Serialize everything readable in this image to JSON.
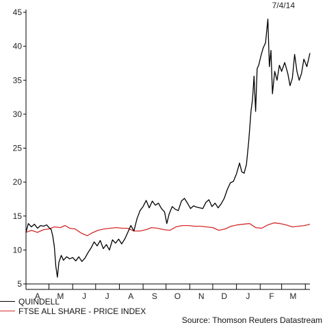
{
  "date_stamp": "7/4/14",
  "source": "Source: Thomson Reuters Datastream",
  "colors": {
    "series1": "#000000",
    "series2": "#d42a2a",
    "axis": "#000000"
  },
  "chart_data": {
    "type": "line",
    "title": "",
    "xlabel": "",
    "ylabel": "",
    "ylim": [
      5,
      45
    ],
    "yticks": [
      5,
      10,
      15,
      20,
      25,
      30,
      35,
      40,
      45
    ],
    "xlim": [
      "2013-04-01",
      "2014-04-07"
    ],
    "xticks": [
      {
        "label": "A",
        "date": "2013-04-16"
      },
      {
        "label": "M",
        "date": "2013-05-16"
      },
      {
        "label": "J",
        "date": "2013-06-16"
      },
      {
        "label": "J",
        "date": "2013-07-16"
      },
      {
        "label": "A",
        "date": "2013-08-16"
      },
      {
        "label": "S",
        "date": "2013-09-16"
      },
      {
        "label": "O",
        "date": "2013-10-16"
      },
      {
        "label": "N",
        "date": "2013-11-16"
      },
      {
        "label": "D",
        "date": "2013-12-16"
      },
      {
        "label": "J",
        "date": "2014-01-16"
      },
      {
        "label": "F",
        "date": "2014-02-16"
      },
      {
        "label": "M",
        "date": "2014-03-16"
      }
    ],
    "grid": false,
    "legend_position": "bottom-left",
    "series": [
      {
        "name": "QUINDELL",
        "points": [
          [
            "2013-04-01",
            12.6
          ],
          [
            "2013-04-04",
            13.9
          ],
          [
            "2013-04-08",
            13.4
          ],
          [
            "2013-04-12",
            13.8
          ],
          [
            "2013-04-16",
            13.2
          ],
          [
            "2013-04-20",
            13.6
          ],
          [
            "2013-04-24",
            13.5
          ],
          [
            "2013-04-28",
            13.7
          ],
          [
            "2013-05-01",
            13.3
          ],
          [
            "2013-05-04",
            13.0
          ],
          [
            "2013-05-06",
            12.0
          ],
          [
            "2013-05-08",
            10.5
          ],
          [
            "2013-05-10",
            7.6
          ],
          [
            "2013-05-12",
            6.0
          ],
          [
            "2013-05-14",
            8.2
          ],
          [
            "2013-05-17",
            9.2
          ],
          [
            "2013-05-20",
            8.5
          ],
          [
            "2013-05-24",
            9.0
          ],
          [
            "2013-05-28",
            8.7
          ],
          [
            "2013-06-01",
            8.9
          ],
          [
            "2013-06-05",
            8.4
          ],
          [
            "2013-06-09",
            9.0
          ],
          [
            "2013-06-13",
            8.3
          ],
          [
            "2013-06-17",
            8.8
          ],
          [
            "2013-06-21",
            9.6
          ],
          [
            "2013-06-25",
            10.3
          ],
          [
            "2013-06-29",
            11.2
          ],
          [
            "2013-07-03",
            10.6
          ],
          [
            "2013-07-07",
            11.4
          ],
          [
            "2013-07-11",
            10.2
          ],
          [
            "2013-07-15",
            10.8
          ],
          [
            "2013-07-19",
            10.0
          ],
          [
            "2013-07-23",
            11.5
          ],
          [
            "2013-07-27",
            11.0
          ],
          [
            "2013-07-31",
            11.6
          ],
          [
            "2013-08-04",
            10.9
          ],
          [
            "2013-08-08",
            11.6
          ],
          [
            "2013-08-12",
            12.6
          ],
          [
            "2013-08-16",
            13.6
          ],
          [
            "2013-08-20",
            12.8
          ],
          [
            "2013-08-24",
            14.6
          ],
          [
            "2013-08-28",
            15.8
          ],
          [
            "2013-09-01",
            16.4
          ],
          [
            "2013-09-05",
            17.3
          ],
          [
            "2013-09-09",
            16.2
          ],
          [
            "2013-09-13",
            17.2
          ],
          [
            "2013-09-17",
            16.6
          ],
          [
            "2013-09-21",
            16.9
          ],
          [
            "2013-09-25",
            16.1
          ],
          [
            "2013-09-29",
            15.6
          ],
          [
            "2013-10-02",
            13.9
          ],
          [
            "2013-10-05",
            15.3
          ],
          [
            "2013-10-09",
            16.4
          ],
          [
            "2013-10-13",
            16.0
          ],
          [
            "2013-10-17",
            15.8
          ],
          [
            "2013-10-21",
            17.2
          ],
          [
            "2013-10-25",
            17.6
          ],
          [
            "2013-10-29",
            16.9
          ],
          [
            "2013-11-02",
            16.1
          ],
          [
            "2013-11-06",
            16.5
          ],
          [
            "2013-11-10",
            16.3
          ],
          [
            "2013-11-14",
            16.2
          ],
          [
            "2013-11-18",
            16.1
          ],
          [
            "2013-11-22",
            17.0
          ],
          [
            "2013-11-26",
            17.4
          ],
          [
            "2013-11-30",
            16.4
          ],
          [
            "2013-12-04",
            16.9
          ],
          [
            "2013-12-08",
            16.2
          ],
          [
            "2013-12-12",
            16.8
          ],
          [
            "2013-12-16",
            17.6
          ],
          [
            "2013-12-20",
            18.9
          ],
          [
            "2013-12-24",
            19.9
          ],
          [
            "2013-12-28",
            20.1
          ],
          [
            "2014-01-01",
            21.2
          ],
          [
            "2014-01-05",
            22.8
          ],
          [
            "2014-01-08",
            21.5
          ],
          [
            "2014-01-11",
            21.3
          ],
          [
            "2014-01-14",
            22.6
          ],
          [
            "2014-01-17",
            26.0
          ],
          [
            "2014-01-20",
            30.5
          ],
          [
            "2014-01-22",
            32.2
          ],
          [
            "2014-01-24",
            35.6
          ],
          [
            "2014-01-26",
            30.4
          ],
          [
            "2014-01-28",
            36.7
          ],
          [
            "2014-01-30",
            37.2
          ],
          [
            "2014-02-02",
            38.6
          ],
          [
            "2014-02-05",
            39.8
          ],
          [
            "2014-02-08",
            40.5
          ],
          [
            "2014-02-11",
            44.0
          ],
          [
            "2014-02-13",
            37.0
          ],
          [
            "2014-02-15",
            39.4
          ],
          [
            "2014-02-17",
            33.0
          ],
          [
            "2014-02-20",
            36.3
          ],
          [
            "2014-02-23",
            35.0
          ],
          [
            "2014-02-26",
            37.2
          ],
          [
            "2014-03-01",
            36.3
          ],
          [
            "2014-03-05",
            37.6
          ],
          [
            "2014-03-09",
            36.0
          ],
          [
            "2014-03-12",
            34.2
          ],
          [
            "2014-03-15",
            35.3
          ],
          [
            "2014-03-18",
            38.8
          ],
          [
            "2014-03-21",
            36.3
          ],
          [
            "2014-03-24",
            35.0
          ],
          [
            "2014-03-27",
            36.0
          ],
          [
            "2014-03-30",
            38.1
          ],
          [
            "2014-04-03",
            37.0
          ],
          [
            "2014-04-07",
            39.0
          ]
        ]
      },
      {
        "name": "FTSE ALL SHARE - PRICE INDEX",
        "points": [
          [
            "2013-04-01",
            12.6
          ],
          [
            "2013-04-08",
            12.9
          ],
          [
            "2013-04-16",
            12.6
          ],
          [
            "2013-04-24",
            13.0
          ],
          [
            "2013-05-01",
            13.1
          ],
          [
            "2013-05-08",
            13.4
          ],
          [
            "2013-05-16",
            13.3
          ],
          [
            "2013-05-22",
            13.6
          ],
          [
            "2013-05-28",
            13.2
          ],
          [
            "2013-06-04",
            13.1
          ],
          [
            "2013-06-12",
            12.5
          ],
          [
            "2013-06-20",
            12.1
          ],
          [
            "2013-06-26",
            12.5
          ],
          [
            "2013-07-04",
            12.9
          ],
          [
            "2013-07-12",
            13.1
          ],
          [
            "2013-07-20",
            13.2
          ],
          [
            "2013-07-28",
            13.3
          ],
          [
            "2013-08-05",
            13.2
          ],
          [
            "2013-08-12",
            13.2
          ],
          [
            "2013-08-20",
            12.8
          ],
          [
            "2013-08-28",
            12.8
          ],
          [
            "2013-09-05",
            13.0
          ],
          [
            "2013-09-12",
            13.3
          ],
          [
            "2013-09-20",
            13.2
          ],
          [
            "2013-09-28",
            13.0
          ],
          [
            "2013-10-06",
            12.9
          ],
          [
            "2013-10-14",
            13.4
          ],
          [
            "2013-10-22",
            13.6
          ],
          [
            "2013-10-30",
            13.6
          ],
          [
            "2013-11-07",
            13.5
          ],
          [
            "2013-11-15",
            13.5
          ],
          [
            "2013-11-23",
            13.4
          ],
          [
            "2013-12-01",
            13.3
          ],
          [
            "2013-12-09",
            12.9
          ],
          [
            "2013-12-17",
            13.1
          ],
          [
            "2013-12-25",
            13.5
          ],
          [
            "2014-01-02",
            13.7
          ],
          [
            "2014-01-10",
            13.8
          ],
          [
            "2014-01-18",
            13.9
          ],
          [
            "2014-01-26",
            13.3
          ],
          [
            "2014-02-03",
            13.2
          ],
          [
            "2014-02-11",
            13.7
          ],
          [
            "2014-02-19",
            14.0
          ],
          [
            "2014-02-27",
            13.9
          ],
          [
            "2014-03-07",
            13.7
          ],
          [
            "2014-03-15",
            13.4
          ],
          [
            "2014-03-23",
            13.5
          ],
          [
            "2014-03-31",
            13.6
          ],
          [
            "2014-04-07",
            13.8
          ]
        ]
      }
    ]
  }
}
